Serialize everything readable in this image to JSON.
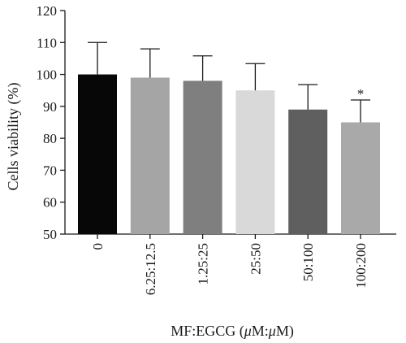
{
  "chart_data": {
    "type": "bar",
    "title": "",
    "xlabel": "MF:EGCG (",
    "xlabel_unit_mu1": "μ",
    "xlabel_unit_mid": "M:",
    "xlabel_unit_mu2": "μ",
    "xlabel_unit_end": "M)",
    "ylabel": "Cells viability (%)",
    "ylim": [
      50,
      120
    ],
    "yticks": [
      "50",
      "60",
      "70",
      "80",
      "90",
      "100",
      "110",
      "120"
    ],
    "categories": [
      "0",
      "6.25:12.5",
      "1.25:25",
      "25:50",
      "50:100",
      "100:200"
    ],
    "values": [
      100,
      99,
      98,
      95,
      89,
      85
    ],
    "errors": [
      10,
      9,
      7.8,
      8.4,
      7.8,
      7
    ],
    "bar_colors": [
      "#070707",
      "#a5a5a5",
      "#7f7f7f",
      "#d9d9d9",
      "#5f5f5f",
      "#a9a9a9"
    ],
    "significance": [
      "",
      "",
      "",
      "",
      "",
      "*"
    ],
    "grid": false,
    "legend": "none"
  }
}
